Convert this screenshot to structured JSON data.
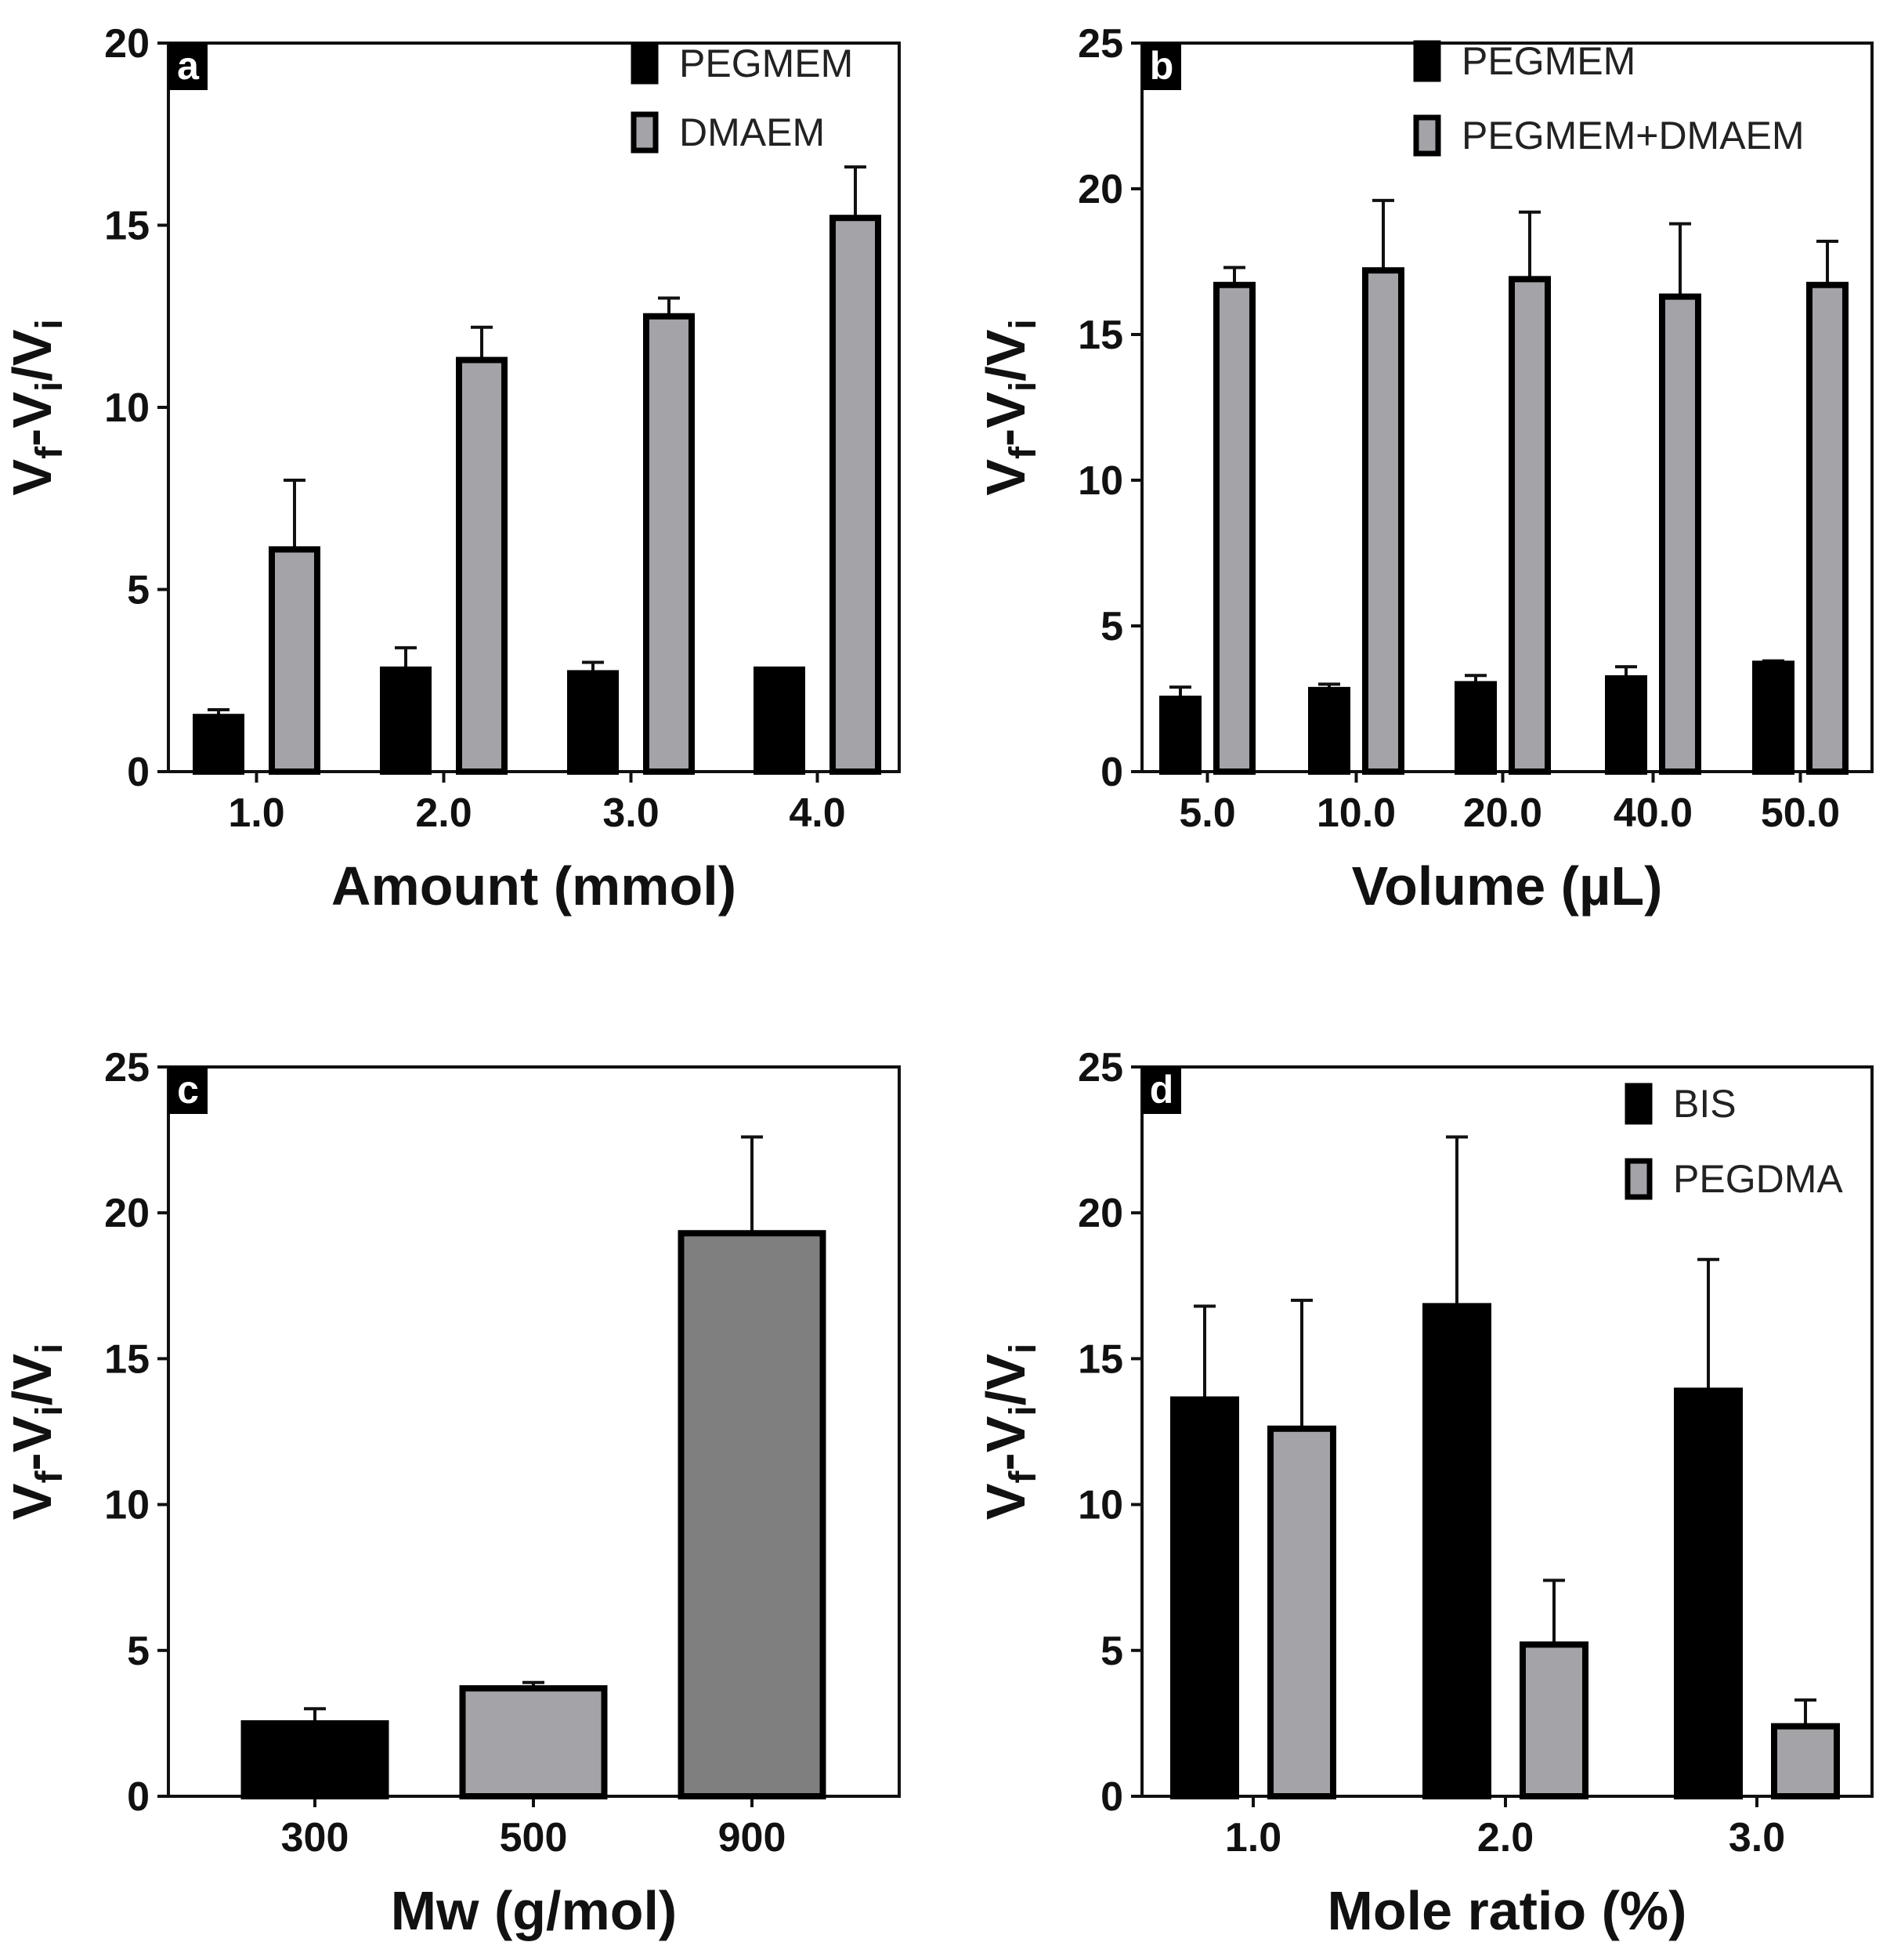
{
  "chart_data": [
    {
      "panel": "a",
      "type": "bar",
      "xlabel": "Amount (mmol)",
      "ylabel": {
        "main": "V",
        "sub1": "f",
        "mid": "-V",
        "sub2": "i",
        "mid2": "/V",
        "sub3": "i"
      },
      "ylim": [
        0,
        20
      ],
      "yticks": [
        0,
        5,
        10,
        15,
        20
      ],
      "categories": [
        "1.0",
        "2.0",
        "3.0",
        "4.0"
      ],
      "legend_position": "top-right",
      "series": [
        {
          "name": "PEGMEM",
          "color": "#000000",
          "values": [
            1.5,
            2.8,
            2.7,
            2.8
          ],
          "errors": [
            0.2,
            0.6,
            0.3,
            0.0
          ]
        },
        {
          "name": "DMAEM",
          "color": "#a3a3a8",
          "values": [
            6.1,
            11.3,
            12.5,
            15.2
          ],
          "errors": [
            1.9,
            0.9,
            0.5,
            1.4
          ]
        }
      ]
    },
    {
      "panel": "b",
      "type": "bar",
      "xlabel": "Volume (µL)",
      "ylabel": {
        "main": "V",
        "sub1": "f",
        "mid": "-V",
        "sub2": "i",
        "mid2": "/V",
        "sub3": "i"
      },
      "ylim": [
        0,
        25
      ],
      "yticks": [
        0,
        5,
        10,
        15,
        20,
        25
      ],
      "categories": [
        "5.0",
        "10.0",
        "20.0",
        "40.0",
        "50.0"
      ],
      "legend_position": "top-right",
      "series": [
        {
          "name": "PEGMEM",
          "color": "#000000",
          "values": [
            2.5,
            2.8,
            3.0,
            3.2,
            3.7
          ],
          "errors": [
            0.4,
            0.2,
            0.3,
            0.4,
            0.1
          ]
        },
        {
          "name": "PEGMEM+DMAEM",
          "color": "#a3a3a8",
          "values": [
            16.7,
            17.2,
            16.9,
            16.3,
            16.7
          ],
          "errors": [
            0.6,
            2.4,
            2.3,
            2.5,
            1.5
          ]
        }
      ]
    },
    {
      "panel": "c",
      "type": "bar",
      "xlabel": "Mw (g/mol)",
      "ylabel": {
        "main": "V",
        "sub1": "f",
        "mid": "-V",
        "sub2": "i",
        "mid2": "/V",
        "sub3": "i"
      },
      "ylim": [
        0,
        25
      ],
      "yticks": [
        0,
        5,
        10,
        15,
        20,
        25
      ],
      "categories": [
        "300",
        "500",
        "900"
      ],
      "series": [
        {
          "values": [
            2.5,
            3.7,
            19.3
          ],
          "errors": [
            0.5,
            0.2,
            3.3
          ],
          "colors": [
            "#000000",
            "#a3a3a8",
            "#7f7f7f"
          ]
        }
      ]
    },
    {
      "panel": "d",
      "type": "bar",
      "xlabel": "Mole ratio (%)",
      "ylabel": {
        "main": "V",
        "sub1": "f",
        "mid": "-V",
        "sub2": "i",
        "mid2": "/V",
        "sub3": "i"
      },
      "ylim": [
        0,
        25
      ],
      "yticks": [
        0,
        5,
        10,
        15,
        20,
        25
      ],
      "categories": [
        "1.0",
        "2.0",
        "3.0"
      ],
      "legend_position": "top-right",
      "series": [
        {
          "name": "BIS",
          "color": "#000000",
          "values": [
            13.6,
            16.8,
            13.9
          ],
          "errors": [
            3.2,
            5.8,
            4.5
          ]
        },
        {
          "name": "PEGDMA",
          "color": "#a3a3a8",
          "values": [
            12.6,
            5.2,
            2.4
          ],
          "errors": [
            4.4,
            2.2,
            0.9
          ]
        }
      ]
    }
  ]
}
